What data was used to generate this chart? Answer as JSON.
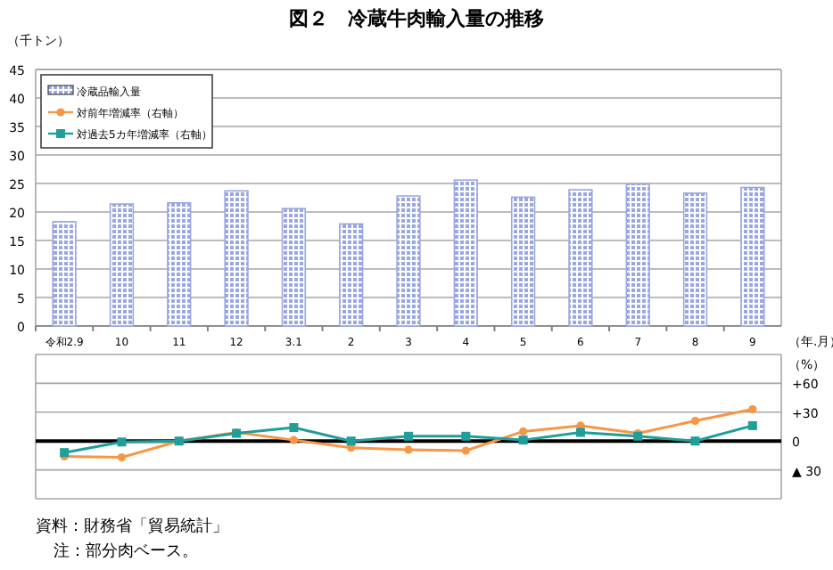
{
  "chart_data": [
    {
      "type": "bar",
      "title": "図２　冷蔵牛肉輸入量の推移",
      "ylabel": "（千トン）",
      "xlabel": "（年.月）",
      "categories": [
        "令和2.9",
        "10",
        "11",
        "12",
        "3.1",
        "2",
        "3",
        "4",
        "5",
        "6",
        "7",
        "8",
        "9"
      ],
      "series": [
        {
          "name": "冷蔵品輸入量",
          "color": "#9aa8e0",
          "values": [
            18.3,
            21.4,
            21.6,
            23.7,
            20.6,
            17.9,
            22.8,
            25.6,
            22.6,
            23.9,
            24.9,
            23.3,
            24.3
          ]
        }
      ],
      "ylim": [
        0,
        45
      ],
      "yticks": [
        0,
        5,
        10,
        15,
        20,
        25,
        30,
        35,
        40,
        45
      ],
      "grid": "y",
      "legend": "top left"
    },
    {
      "type": "line",
      "ylabel": "（%）",
      "categories": [
        null,
        null,
        null,
        null,
        null,
        null,
        null,
        null,
        null,
        null,
        null,
        null,
        null
      ],
      "series": [
        {
          "name": "対前年増減率（右軸）",
          "color": "#f79646",
          "marker": "circle",
          "values": [
            -16,
            -17,
            0,
            9,
            1,
            -7,
            -9,
            -10,
            10,
            16,
            8,
            21,
            33
          ]
        },
        {
          "name": "対過去5カ年増減率（右軸）",
          "color": "#1f9e9a",
          "marker": "square",
          "values": [
            -12,
            -1,
            0,
            8,
            14,
            0,
            5,
            5,
            1,
            9,
            5,
            0,
            16
          ]
        }
      ],
      "ylim": [
        -60,
        90
      ],
      "yticks": [
        {
          "value": 60,
          "label": "+60"
        },
        {
          "value": 30,
          "label": "+30"
        },
        0,
        {
          "value": -30,
          "label": "▲ 30"
        }
      ],
      "grid": "y",
      "tick_labels": "y",
      "legend": "top left",
      "ref_lines": [
        {
          "axis": "y",
          "value": 0,
          "color": "#000000"
        }
      ],
      "annotations": [
        "資料：財務省「貿易統計」",
        "注：部分肉ベース。"
      ]
    }
  ]
}
